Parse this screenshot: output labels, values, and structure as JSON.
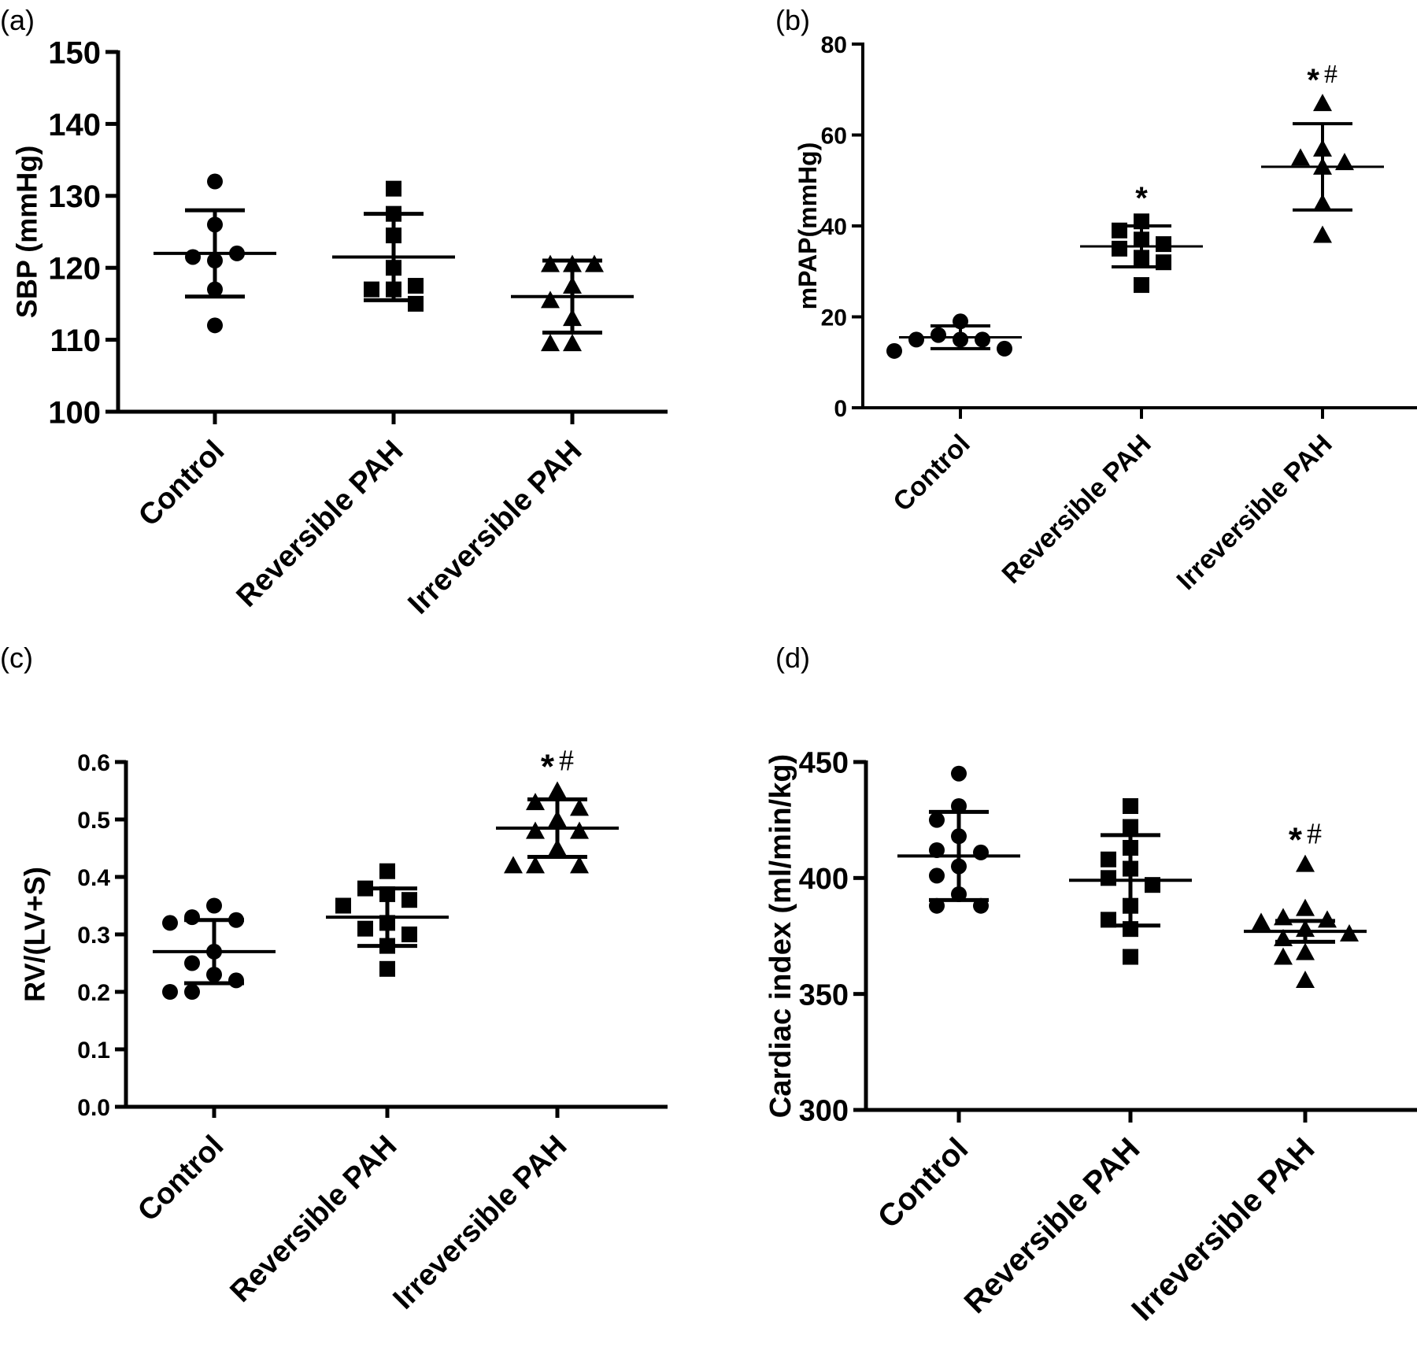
{
  "chart_data": [
    {
      "type": "scatter",
      "panel": "(a)",
      "ylabel": "SBP (mmHg)",
      "ylim": [
        100,
        150
      ],
      "yticks": [
        "100",
        "110",
        "120",
        "130",
        "140",
        "150"
      ],
      "categories": [
        "Control",
        "Reversible PAH",
        "Irreversible PAH"
      ],
      "series": [
        {
          "category": "Control",
          "marker": "circle",
          "values": [
            132,
            126,
            121,
            121.5,
            122,
            117,
            112
          ],
          "mean": 122,
          "sd_low": 116,
          "sd_high": 128
        },
        {
          "category": "Reversible PAH",
          "marker": "square",
          "values": [
            131,
            127.5,
            124.5,
            120,
            117,
            117,
            117.5,
            115
          ],
          "mean": 121.5,
          "sd_low": 115.5,
          "sd_high": 127.5
        },
        {
          "category": "Irreversible PAH",
          "marker": "triangle",
          "values": [
            120.5,
            120.5,
            120.5,
            117.5,
            115.5,
            113,
            109.5,
            109.5
          ],
          "mean": 116,
          "sd_low": 111,
          "sd_high": 121
        }
      ],
      "annotations": []
    },
    {
      "type": "scatter",
      "panel": "(b)",
      "ylabel": "mPAP(mmHg)",
      "ylim": [
        0,
        80
      ],
      "yticks": [
        "0",
        "20",
        "40",
        "60",
        "80"
      ],
      "categories": [
        "Control",
        "Reversible PAH",
        "Irreversible PAH"
      ],
      "series": [
        {
          "category": "Control",
          "marker": "circle",
          "values": [
            19,
            16,
            15,
            15,
            15,
            13,
            12.5
          ],
          "mean": 15.5,
          "sd_low": 13,
          "sd_high": 18
        },
        {
          "category": "Reversible PAH",
          "marker": "square",
          "values": [
            41,
            39,
            37,
            36,
            35,
            33,
            32,
            27
          ],
          "mean": 35.5,
          "sd_low": 31,
          "sd_high": 40
        },
        {
          "category": "Irreversible PAH",
          "marker": "triangle",
          "values": [
            67,
            57,
            55,
            54,
            53,
            45,
            38
          ],
          "mean": 53,
          "sd_low": 43.5,
          "sd_high": 62.5
        }
      ],
      "annotations": [
        {
          "category": "Reversible PAH",
          "star": "*",
          "hash": ""
        },
        {
          "category": "Irreversible PAH",
          "star": "*",
          "hash": "#"
        }
      ]
    },
    {
      "type": "scatter",
      "panel": "(c)",
      "ylabel": "RV/(LV+S)",
      "ylim": [
        0.0,
        0.6
      ],
      "yticks": [
        "0.0",
        "0.1",
        "0.2",
        "0.3",
        "0.4",
        "0.5",
        "0.6"
      ],
      "categories": [
        "Control",
        "Reversible PAH",
        "Irreversible PAH"
      ],
      "series": [
        {
          "category": "Control",
          "marker": "circle",
          "values": [
            0.35,
            0.33,
            0.325,
            0.32,
            0.27,
            0.25,
            0.23,
            0.22,
            0.2,
            0.2
          ],
          "mean": 0.27,
          "sd_low": 0.215,
          "sd_high": 0.325
        },
        {
          "category": "Reversible PAH",
          "marker": "square",
          "values": [
            0.41,
            0.38,
            0.37,
            0.36,
            0.35,
            0.32,
            0.31,
            0.3,
            0.28,
            0.24
          ],
          "mean": 0.33,
          "sd_low": 0.28,
          "sd_high": 0.38
        },
        {
          "category": "Irreversible PAH",
          "marker": "triangle",
          "values": [
            0.55,
            0.53,
            0.52,
            0.5,
            0.48,
            0.48,
            0.45,
            0.42,
            0.42,
            0.42
          ],
          "mean": 0.485,
          "sd_low": 0.435,
          "sd_high": 0.535
        }
      ],
      "annotations": [
        {
          "category": "Irreversible PAH",
          "star": "*",
          "hash": "#"
        }
      ]
    },
    {
      "type": "scatter",
      "panel": "(d)",
      "ylabel": "Cardiac index (ml/min/kg)",
      "ylim": [
        300,
        450
      ],
      "yticks": [
        "300",
        "350",
        "400",
        "450"
      ],
      "categories": [
        "Control",
        "Reversible PAH",
        "Irreversible PAH"
      ],
      "series": [
        {
          "category": "Control",
          "marker": "circle",
          "values": [
            445,
            431,
            425,
            418,
            412,
            411,
            405,
            401,
            393,
            388,
            388
          ],
          "mean": 409.5,
          "sd_low": 390.5,
          "sd_high": 428.5
        },
        {
          "category": "Reversible PAH",
          "marker": "square",
          "values": [
            431,
            422,
            413,
            408,
            404,
            400,
            397,
            388,
            382,
            378,
            366
          ],
          "mean": 399,
          "sd_low": 379.5,
          "sd_high": 418.5
        },
        {
          "category": "Irreversible PAH",
          "marker": "triangle",
          "values": [
            406,
            387,
            383,
            382,
            381,
            378,
            376,
            374,
            368,
            366,
            356
          ],
          "mean": 377,
          "sd_low": 372.5,
          "sd_high": 381.5
        }
      ],
      "annotations": [
        {
          "category": "Irreversible PAH",
          "star": "*",
          "hash": "#"
        }
      ]
    }
  ]
}
